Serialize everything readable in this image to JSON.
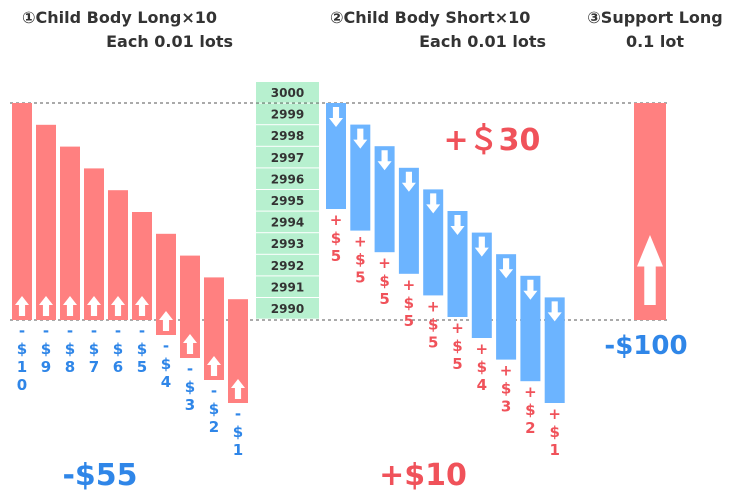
{
  "headers": {
    "long_title": "①Child Body Long×10",
    "long_sub": "Each 0.01 lots",
    "short_title": "②Child Body Short×10",
    "short_sub": "Each 0.01 lots",
    "support_title": "③Support Long",
    "support_sub": "0.1 lot"
  },
  "prices": [
    "3000",
    "2999",
    "2998",
    "2997",
    "2996",
    "2995",
    "2994",
    "2993",
    "2992",
    "2991",
    "2990"
  ],
  "long_labels": [
    [
      "-",
      "$",
      "1",
      "0"
    ],
    [
      "-",
      "$",
      "9"
    ],
    [
      "-",
      "$",
      "8"
    ],
    [
      "-",
      "$",
      "7"
    ],
    [
      "-",
      "$",
      "6"
    ],
    [
      "-",
      "$",
      "5"
    ],
    [
      "-",
      "$",
      "4"
    ],
    [
      "-",
      "$",
      "3"
    ],
    [
      "-",
      "$",
      "2"
    ],
    [
      "-",
      "$",
      "1"
    ]
  ],
  "short_labels": [
    [
      "+",
      "$",
      "5"
    ],
    [
      "+",
      "$",
      "5"
    ],
    [
      "+",
      "$",
      "5"
    ],
    [
      "+",
      "$",
      "5"
    ],
    [
      "+",
      "$",
      "5"
    ],
    [
      "+",
      "$",
      "5"
    ],
    [
      "+",
      "$",
      "4"
    ],
    [
      "+",
      "$",
      "3"
    ],
    [
      "+",
      "$",
      "2"
    ],
    [
      "+",
      "$",
      "1"
    ]
  ],
  "totals": {
    "long": "-$55",
    "short_top": "+＄30",
    "net": "+$10",
    "support": "-$100"
  },
  "colors": {
    "long": "#ff8080",
    "short": "#6cb4ff",
    "price_bg": "#b7f0cf",
    "loss_text": "#2f86e8",
    "gain_text": "#f0525a",
    "arrow": "#ffffff"
  }
}
